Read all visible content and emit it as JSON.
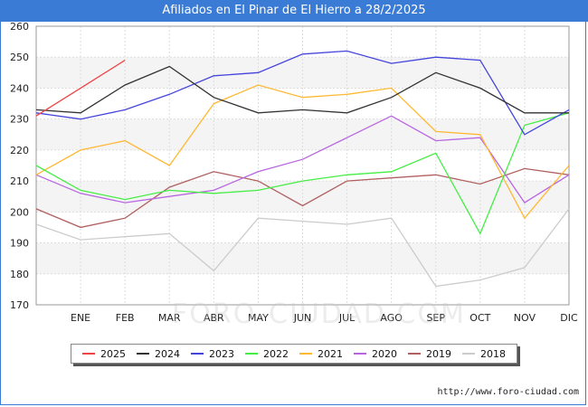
{
  "chart_data": {
    "type": "line",
    "title": "Afiliados en El Pinar de El Hierro a 28/2/2025",
    "categories": [
      "",
      "ENE",
      "FEB",
      "MAR",
      "ABR",
      "MAY",
      "JUN",
      "JUL",
      "AGO",
      "SEP",
      "OCT",
      "NOV",
      "DIC"
    ],
    "ylim": [
      170,
      260
    ],
    "yticks": [
      170,
      180,
      190,
      200,
      210,
      220,
      230,
      240,
      250,
      260
    ],
    "grid": true,
    "legend_position": "bottom",
    "series": [
      {
        "name": "2025",
        "color": "#ee4444",
        "values": [
          231,
          240,
          249,
          null,
          null,
          null,
          null,
          null,
          null,
          null,
          null,
          null,
          null
        ]
      },
      {
        "name": "2024",
        "color": "#333333",
        "values": [
          233,
          232,
          241,
          247,
          237,
          232,
          233,
          232,
          237,
          245,
          240,
          232,
          232
        ]
      },
      {
        "name": "2023",
        "color": "#4444dd",
        "values": [
          232,
          230,
          233,
          238,
          244,
          245,
          251,
          252,
          248,
          250,
          249,
          225,
          233
        ]
      },
      {
        "name": "2022",
        "color": "#44ee44",
        "values": [
          215,
          207,
          204,
          207,
          206,
          207,
          210,
          212,
          213,
          219,
          193,
          228,
          232
        ]
      },
      {
        "name": "2021",
        "color": "#ffb833",
        "values": [
          212,
          220,
          223,
          215,
          235,
          241,
          237,
          238,
          240,
          226,
          225,
          198,
          215
        ]
      },
      {
        "name": "2020",
        "color": "#b866e0",
        "values": [
          212,
          206,
          203,
          205,
          207,
          213,
          217,
          224,
          231,
          223,
          224,
          203,
          212
        ]
      },
      {
        "name": "2019",
        "color": "#b06060",
        "values": [
          201,
          195,
          198,
          208,
          213,
          210,
          202,
          210,
          211,
          212,
          209,
          214,
          212
        ]
      },
      {
        "name": "2018",
        "color": "#cccccc",
        "values": [
          196,
          191,
          192,
          193,
          181,
          198,
          197,
          196,
          198,
          176,
          178,
          182,
          201
        ]
      }
    ]
  },
  "watermark": "FORO-CIUDAD.COM",
  "source": "http://www.foro-ciudad.com"
}
